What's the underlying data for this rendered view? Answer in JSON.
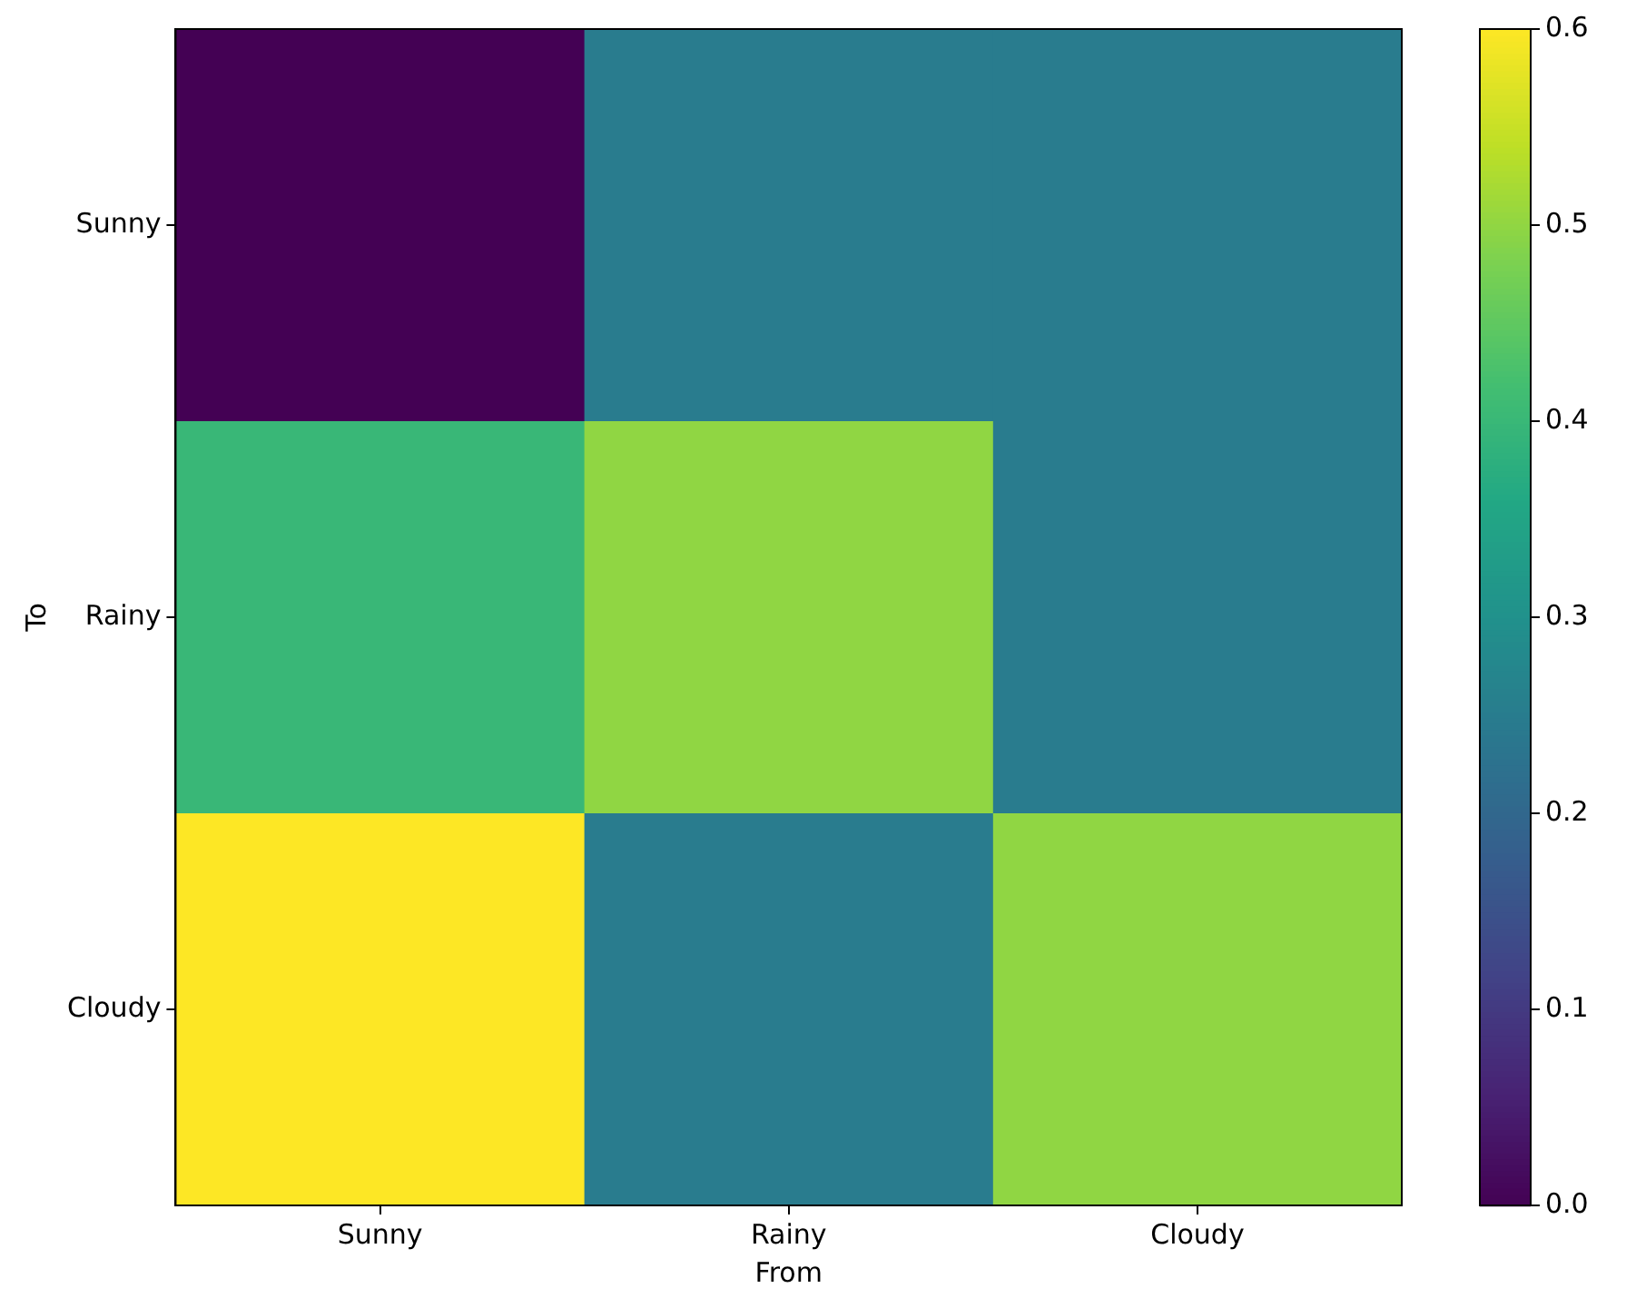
{
  "chart_data": {
    "type": "heatmap",
    "xlabel": "From",
    "ylabel": "To",
    "categories": [
      "Sunny",
      "Rainy",
      "Cloudy"
    ],
    "y_categories": [
      "Sunny",
      "Rainy",
      "Cloudy"
    ],
    "cells": [
      [
        0.0,
        0.25,
        0.25
      ],
      [
        0.4,
        0.5,
        0.25
      ],
      [
        0.6,
        0.25,
        0.5
      ]
    ],
    "clim": [
      0,
      0.6
    ],
    "cticks": [
      {
        "value": 0,
        "label": "0.0"
      },
      {
        "value": 0.1,
        "label": "0.1"
      },
      {
        "value": 0.2,
        "label": "0.2"
      },
      {
        "value": 0.3,
        "label": "0.3"
      },
      {
        "value": 0.4,
        "label": "0.4"
      },
      {
        "value": 0.5,
        "label": "0.5"
      },
      {
        "value": 0.6,
        "label": "0.6"
      }
    ]
  }
}
